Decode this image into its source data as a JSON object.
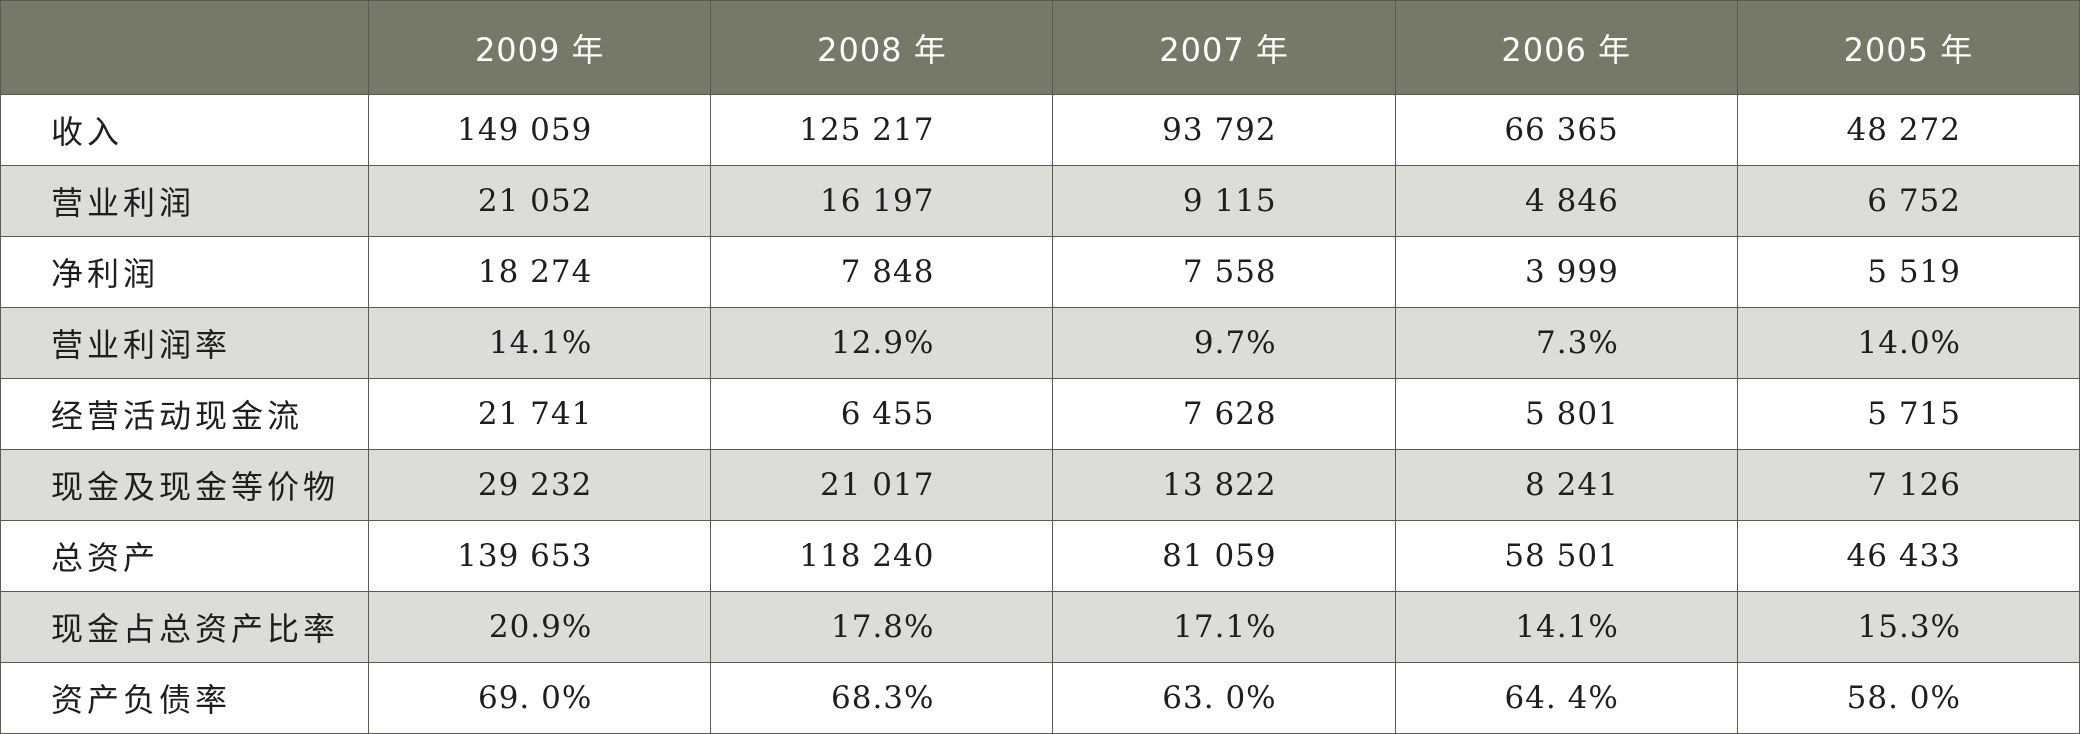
{
  "table": {
    "corner": "",
    "years": [
      "2009 年",
      "2008 年",
      "2007 年",
      "2006 年",
      "2005 年"
    ],
    "rows": [
      {
        "label": "收入",
        "values": [
          "149 059",
          "125 217",
          "93 792",
          "66 365",
          "48 272"
        ]
      },
      {
        "label": "营业利润",
        "values": [
          "21 052",
          "16 197",
          "9 115",
          "4 846",
          "6 752"
        ]
      },
      {
        "label": "净利润",
        "values": [
          "18 274",
          "7 848",
          "7 558",
          "3 999",
          "5 519"
        ]
      },
      {
        "label": "营业利润率",
        "values": [
          "14.1%",
          "12.9%",
          "9.7%",
          "7.3%",
          "14.0%"
        ]
      },
      {
        "label": "经营活动现金流",
        "values": [
          "21 741",
          "6 455",
          "7 628",
          "5 801",
          "5 715"
        ]
      },
      {
        "label": "现金及现金等价物",
        "values": [
          "29 232",
          "21 017",
          "13 822",
          "8 241",
          "7 126"
        ]
      },
      {
        "label": "总资产",
        "values": [
          "139 653",
          "118 240",
          "81 059",
          "58 501",
          "46 433"
        ]
      },
      {
        "label": "现金占总资产比率",
        "values": [
          "20.9%",
          "17.8%",
          "17.1%",
          "14.1%",
          "15.3%"
        ]
      },
      {
        "label": "资产负债率",
        "values": [
          "69. 0%",
          "68.3%",
          "63. 0%",
          "64. 4%",
          "58. 0%"
        ]
      }
    ]
  },
  "colors": {
    "header_bg": "#767868",
    "header_text": "#ffffff",
    "stripe_bg": "#dcdcd8",
    "border": "#5a5a50"
  }
}
